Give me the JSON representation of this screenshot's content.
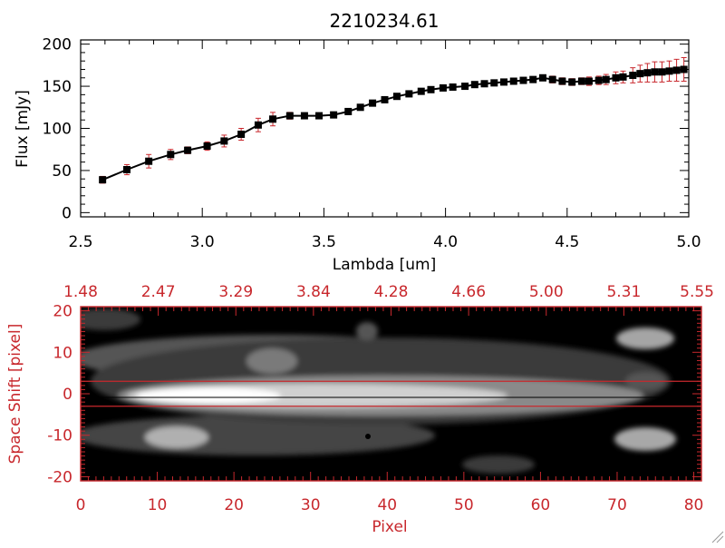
{
  "chart_data": [
    {
      "type": "scatter",
      "title": "2210234.61",
      "xlabel": "Lambda [um]",
      "ylabel": "Flux [mJy]",
      "xlim": [
        2.5,
        5.0
      ],
      "ylim": [
        -5,
        205
      ],
      "x_ticks": [
        "2.5",
        "3.0",
        "3.5",
        "4.0",
        "4.5",
        "5.0"
      ],
      "y_ticks": [
        "0",
        "50",
        "100",
        "150",
        "200"
      ],
      "grid": false,
      "series": [
        {
          "connect": true,
          "marker": "square",
          "color": "#000000",
          "error_color": "#c8282d",
          "x": [
            2.59,
            2.69,
            2.78,
            2.87,
            2.94,
            3.02,
            3.09,
            3.16,
            3.23,
            3.29,
            3.36,
            3.42,
            3.48,
            3.54,
            3.6,
            3.65,
            3.7,
            3.75,
            3.8,
            3.85,
            3.9,
            3.94,
            3.99,
            4.03,
            4.08,
            4.12,
            4.16,
            4.2,
            4.24,
            4.28,
            4.32,
            4.36,
            4.4,
            4.44,
            4.48,
            4.52,
            4.56,
            4.59,
            4.63,
            4.66,
            4.7,
            4.73,
            4.77,
            4.8,
            4.83,
            4.86,
            4.89,
            4.92,
            4.95,
            4.98
          ],
          "y": [
            39,
            51,
            61,
            69,
            74,
            79,
            85,
            93,
            104,
            111,
            115,
            115,
            115,
            116,
            120,
            125,
            130,
            134,
            138,
            141,
            144,
            146,
            148,
            149,
            150,
            152,
            153,
            154,
            155,
            156,
            157,
            158,
            160,
            158,
            156,
            155,
            156,
            156,
            157,
            158,
            160,
            161,
            163,
            165,
            166,
            167,
            167,
            168,
            169,
            170
          ],
          "err": [
            4,
            6,
            8,
            6,
            4,
            5,
            7,
            7,
            8,
            8,
            4,
            3,
            3,
            3,
            3,
            3,
            3,
            3,
            3,
            3,
            3,
            3,
            3,
            3,
            3,
            3,
            3,
            3,
            3,
            3,
            3,
            3,
            3,
            4,
            4,
            4,
            4,
            5,
            5,
            6,
            7,
            7,
            9,
            10,
            11,
            12,
            12,
            12,
            13,
            14
          ]
        }
      ]
    },
    {
      "type": "heatmap",
      "xlabel": "Pixel",
      "ylabel": "Space Shift [pixel]",
      "xlim": [
        0,
        81
      ],
      "ylim": [
        -21,
        21
      ],
      "x_ticks": [
        "0",
        "10",
        "20",
        "30",
        "40",
        "50",
        "60",
        "70",
        "80"
      ],
      "y_ticks": [
        "-20",
        "-10",
        "0",
        "10",
        "20"
      ],
      "top_ticks": [
        "1.48",
        "2.47",
        "3.29",
        "3.84",
        "4.28",
        "4.66",
        "5.00",
        "5.31",
        "5.55"
      ],
      "colormap": "grayscale",
      "extraction_lines": [
        -3,
        3
      ],
      "line_color": "#c8282d"
    }
  ]
}
